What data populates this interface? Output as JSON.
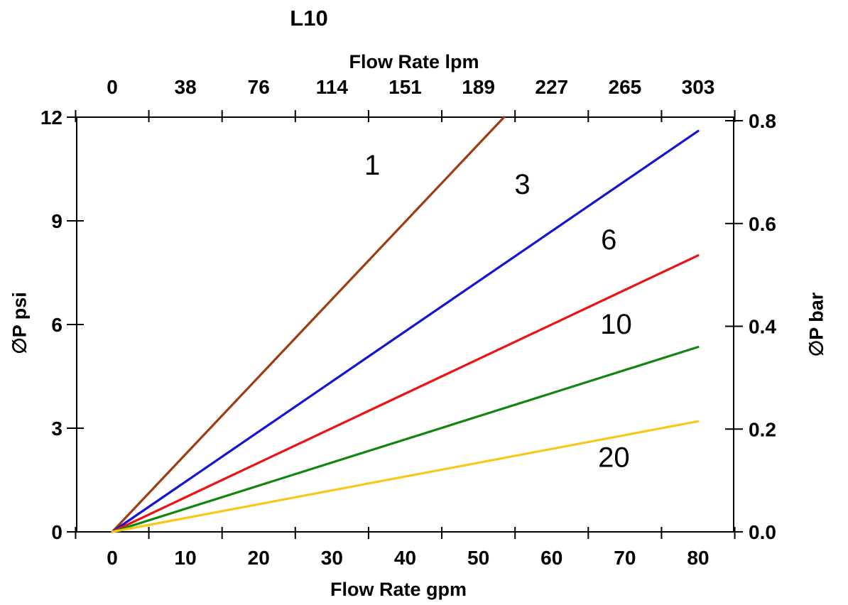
{
  "chart_data": {
    "type": "line",
    "title": "L10",
    "background": "#ffffff",
    "axis_color": "#000000",
    "grid": false,
    "legend": "inline-labels-on-lines",
    "axes": {
      "x_bottom": {
        "label": "Flow Rate gpm",
        "ticks": [
          0,
          10,
          20,
          30,
          40,
          50,
          60,
          70,
          80
        ],
        "minor_ticks": [
          5,
          15,
          25,
          35,
          45,
          55,
          65,
          75
        ],
        "range": [
          -5,
          85
        ]
      },
      "x_top": {
        "label": "Flow Rate lpm",
        "ticks": [
          "0",
          "38",
          "76",
          "114",
          "151",
          "189",
          "227",
          "265",
          "303"
        ]
      },
      "y_left": {
        "label": "∅P psi",
        "ticks": [
          0,
          3,
          6,
          9,
          12
        ],
        "range": [
          0,
          12
        ]
      },
      "y_right": {
        "label": "∅P bar",
        "ticks": [
          "0.0",
          "0.2",
          "0.4",
          "0.6",
          "0.8"
        ],
        "range": [
          0,
          0.8
        ]
      }
    },
    "series": [
      {
        "name": "1",
        "color": "#9e3b10",
        "points": [
          [
            0,
            0
          ],
          [
            53.5,
            12.0
          ]
        ],
        "label_at": [
          35.5,
          10.6
        ]
      },
      {
        "name": "3",
        "color": "#1414d2",
        "points": [
          [
            0,
            0
          ],
          [
            80.0,
            11.6
          ]
        ],
        "label_at": [
          56.0,
          10.05
        ]
      },
      {
        "name": "6",
        "color": "#ee1111",
        "points": [
          [
            0,
            0
          ],
          [
            80.0,
            8.0
          ]
        ],
        "label_at": [
          67.8,
          8.45
        ]
      },
      {
        "name": "10",
        "color": "#0f870f",
        "points": [
          [
            0,
            0
          ],
          [
            80.0,
            5.35
          ]
        ],
        "label_at": [
          68.8,
          6.0
        ]
      },
      {
        "name": "20",
        "color": "#f8c719",
        "points": [
          [
            0,
            0
          ],
          [
            80.0,
            3.2
          ]
        ],
        "label_at": [
          68.5,
          2.15
        ]
      }
    ]
  }
}
